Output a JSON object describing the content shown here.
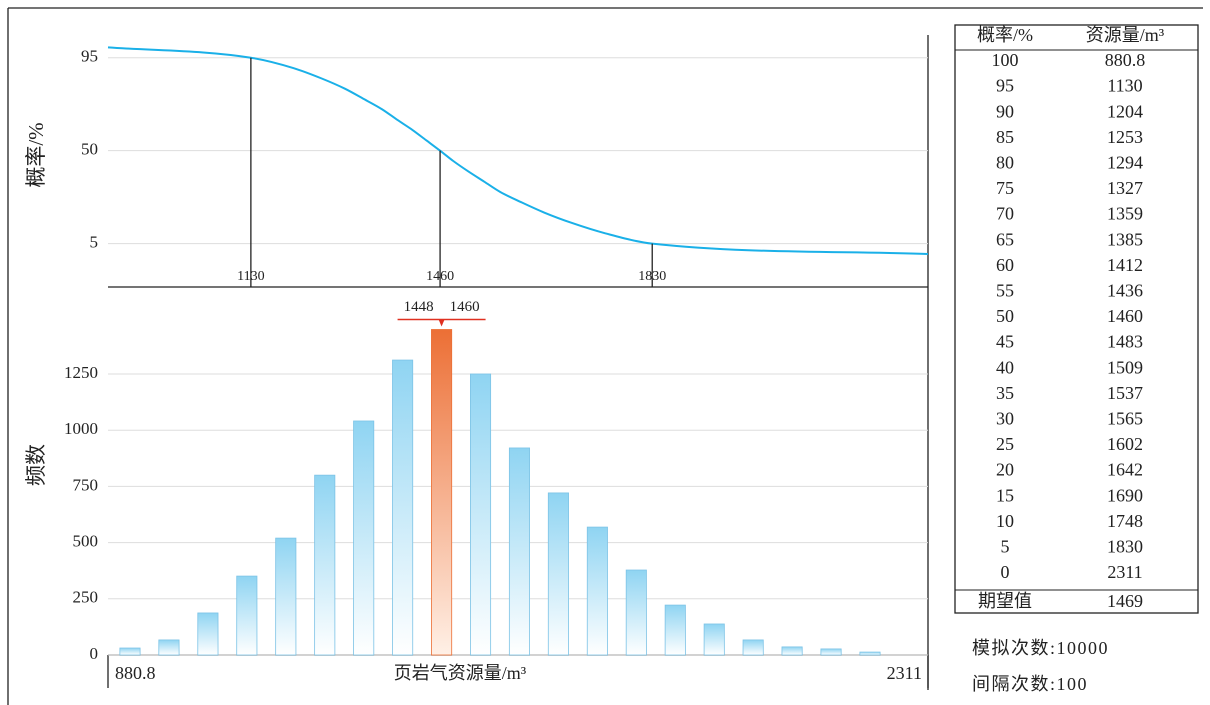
{
  "chart_data": [
    {
      "type": "line",
      "y_label": "概率/%",
      "xlim": [
        880.8,
        2311
      ],
      "ylim": [
        -16,
        106
      ],
      "yticks": [
        5,
        50,
        95
      ],
      "xticks": [
        1130,
        1460,
        1830
      ],
      "grid": true,
      "color": "#1ab0e8",
      "drop_lines": [
        {
          "x": 1130,
          "y": 95
        },
        {
          "x": 1460,
          "y": 50
        },
        {
          "x": 1830,
          "y": 5
        }
      ]
    },
    {
      "type": "histogram",
      "y_label": "频数",
      "x_label": "页岩气资源量/m³",
      "xlim": [
        880.8,
        2311
      ],
      "ylim": [
        0,
        1637
      ],
      "yticks": [
        0,
        250,
        500,
        750,
        1000,
        1250
      ],
      "xticks": [
        880.8,
        2311
      ],
      "grid": true,
      "color": "#8fd4f2",
      "bins": [
        885.2,
        953.1,
        1021.1,
        1089.0,
        1156.9,
        1224.9,
        1292.8,
        1360.7,
        1428.6,
        1496.6,
        1564.5,
        1632.4,
        1700.4,
        1768.3,
        1836.2,
        1904.2,
        1972.1,
        2040.0,
        2107.9,
        2175.9,
        2243.8
      ],
      "values": [
        31,
        67,
        187,
        351,
        520,
        800,
        1041,
        1312,
        1448,
        1250,
        921,
        721,
        569,
        378,
        222,
        138,
        67,
        36,
        27,
        13
      ],
      "highlight_index": 8,
      "highlight_color": "#ec6f35",
      "annotation_value": 1460,
      "annotation_color": "#e03020"
    }
  ],
  "table": {
    "header": [
      "概率/%",
      "资源量/m³"
    ],
    "rows": [
      [
        100,
        880.8
      ],
      [
        95,
        1130
      ],
      [
        90,
        1204
      ],
      [
        85,
        1253
      ],
      [
        80,
        1294
      ],
      [
        75,
        1327
      ],
      [
        70,
        1359
      ],
      [
        65,
        1385
      ],
      [
        60,
        1412
      ],
      [
        55,
        1436
      ],
      [
        50,
        1460
      ],
      [
        45,
        1483
      ],
      [
        40,
        1509
      ],
      [
        35,
        1537
      ],
      [
        30,
        1565
      ],
      [
        25,
        1602
      ],
      [
        20,
        1642
      ],
      [
        15,
        1690
      ],
      [
        10,
        1748
      ],
      [
        5,
        1830
      ],
      [
        0,
        2311
      ]
    ],
    "footer": [
      "期望值",
      1469
    ]
  },
  "notes": [
    "模拟次数:10000",
    "间隔次数:100"
  ]
}
